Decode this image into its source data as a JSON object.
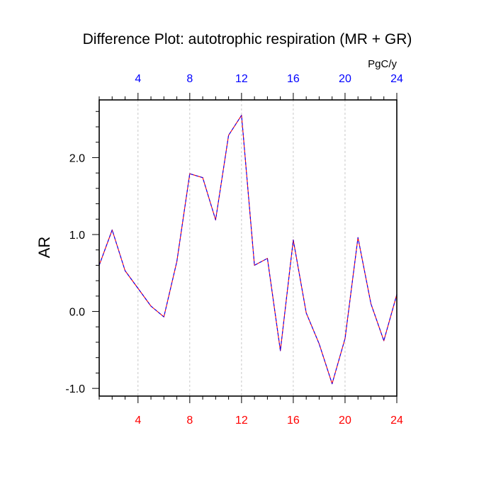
{
  "chart_data": {
    "type": "line",
    "title": "Difference Plot: autotrophic respiration (MR + GR)",
    "ylabel": "AR",
    "units_label": "PgC/y",
    "xlim": [
      1,
      24
    ],
    "ylim": [
      -1.1,
      2.75
    ],
    "x_ticks": [
      4,
      8,
      12,
      16,
      20,
      24
    ],
    "x_tick_labels": [
      "4",
      "8",
      "12",
      "16",
      "20",
      "24"
    ],
    "y_ticks": [
      -1.0,
      0.0,
      1.0,
      2.0
    ],
    "y_tick_labels": [
      "-1.0",
      "0.0",
      "1.0",
      "2.0"
    ],
    "grid": "vertical dashed at major x ticks",
    "x_tick_color_bottom": "#ff0000",
    "x_tick_color_top": "#0000ff",
    "line_colors": [
      "#ff0000",
      "#0000ff"
    ],
    "series": [
      {
        "x": [
          1,
          2,
          3,
          4,
          5,
          6,
          7,
          8,
          9,
          10,
          11,
          12,
          13,
          14,
          15,
          16,
          17,
          18,
          19,
          20,
          21,
          22,
          23,
          24
        ],
        "values": [
          0.6,
          1.06,
          0.53,
          0.3,
          0.07,
          -0.07,
          0.65,
          1.79,
          1.74,
          1.19,
          2.29,
          2.55,
          0.6,
          0.69,
          -0.51,
          0.93,
          -0.02,
          -0.42,
          -0.94,
          -0.35,
          0.96,
          0.1,
          -0.38,
          0.22
        ]
      }
    ]
  }
}
